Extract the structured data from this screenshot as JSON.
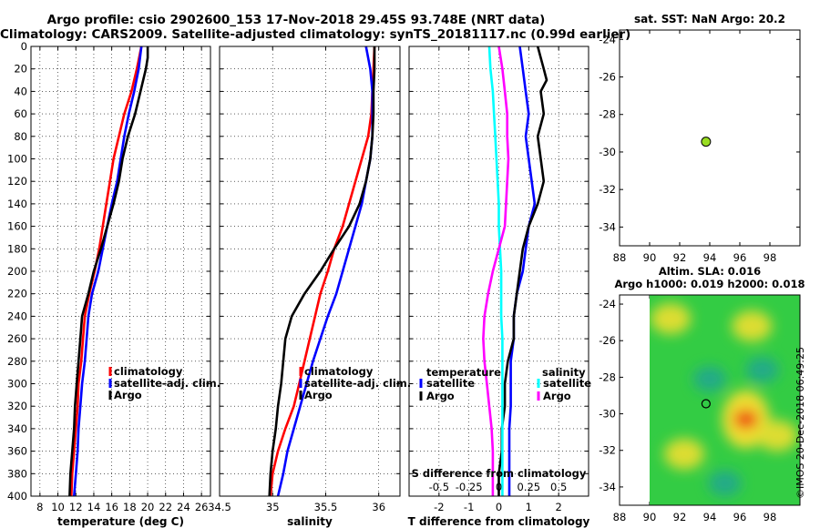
{
  "header": {
    "title_line1": "Argo profile: csio 2902600_153 17-Nov-2018 29.45S 93.748E (NRT data)",
    "title_line2": "Climatology: CARS2009. Satellite-adjusted climatology: synTS_20181117.nc (0.99d earlier)"
  },
  "stamp": "©IMOS 20-Dec-2018 06:49:25",
  "colors": {
    "climatology": "#ff0000",
    "satellite": "#0000ff",
    "argo": "#000000",
    "sat_salinity": "#00ffff",
    "argo_salinity": "#ff00ff"
  },
  "chart_data": [
    {
      "type": "line",
      "id": "temperature",
      "xlabel": "temperature (deg C)",
      "ylabel": "",
      "xlim": [
        7,
        27
      ],
      "ylim": [
        400,
        0
      ],
      "xticks": [
        8,
        10,
        12,
        14,
        16,
        18,
        20,
        22,
        24,
        26
      ],
      "yticks": [
        0,
        20,
        40,
        60,
        80,
        100,
        120,
        140,
        160,
        180,
        200,
        220,
        240,
        260,
        280,
        300,
        320,
        340,
        360,
        380,
        400
      ],
      "legend": {
        "position": "bottom-right",
        "entries": [
          "climatology",
          "satellite-adj. clim.",
          "Argo"
        ]
      },
      "series": [
        {
          "name": "climatology",
          "color": "#ff0000",
          "depth": [
            0,
            20,
            40,
            60,
            80,
            100,
            120,
            140,
            160,
            180,
            200,
            220,
            240,
            260,
            280,
            300,
            320,
            340,
            360,
            380,
            400
          ],
          "values": [
            19.3,
            18.8,
            18.2,
            17.4,
            16.8,
            16.2,
            15.8,
            15.4,
            15.0,
            14.6,
            14.1,
            13.5,
            13.0,
            12.8,
            12.6,
            12.3,
            12.2,
            12.0,
            11.8,
            11.6,
            11.5
          ]
        },
        {
          "name": "satellite-adj. clim.",
          "color": "#0000ff",
          "depth": [
            0,
            20,
            40,
            60,
            80,
            100,
            120,
            140,
            160,
            180,
            200,
            220,
            240,
            260,
            280,
            300,
            320,
            340,
            360,
            380,
            400
          ],
          "values": [
            19.3,
            19.0,
            18.5,
            17.9,
            17.4,
            17.0,
            16.6,
            16.0,
            15.5,
            15.0,
            14.5,
            13.8,
            13.4,
            13.2,
            13.0,
            12.7,
            12.5,
            12.3,
            12.2,
            12.0,
            11.8
          ]
        },
        {
          "name": "Argo",
          "color": "#000000",
          "depth": [
            0,
            10,
            20,
            40,
            60,
            80,
            100,
            120,
            140,
            160,
            180,
            200,
            220,
            240,
            260,
            280,
            300,
            320,
            340,
            360,
            380,
            400
          ],
          "values": [
            20.0,
            20.0,
            19.8,
            19.2,
            18.6,
            17.8,
            17.2,
            16.8,
            16.2,
            15.5,
            14.8,
            14.0,
            13.4,
            12.7,
            12.5,
            12.3,
            12.1,
            11.9,
            11.8,
            11.6,
            11.4,
            11.3
          ]
        }
      ]
    },
    {
      "type": "line",
      "id": "salinity",
      "xlabel": "salinity",
      "ylabel": "",
      "xlim": [
        34.5,
        36.2
      ],
      "ylim": [
        400,
        0
      ],
      "xticks": [
        34.5,
        35,
        35.5,
        36
      ],
      "legend": {
        "position": "bottom-right",
        "entries": [
          "climatology",
          "satellite-adj. clim.",
          "Argo"
        ]
      },
      "series": [
        {
          "name": "climatology",
          "color": "#ff0000",
          "depth": [
            0,
            20,
            40,
            60,
            80,
            100,
            120,
            140,
            160,
            180,
            200,
            220,
            240,
            260,
            280,
            300,
            320,
            340,
            360,
            380,
            400
          ],
          "values": [
            35.96,
            35.95,
            35.94,
            35.93,
            35.9,
            35.84,
            35.78,
            35.72,
            35.66,
            35.58,
            35.52,
            35.45,
            35.4,
            35.35,
            35.3,
            35.25,
            35.2,
            35.12,
            35.05,
            35.0,
            34.98
          ]
        },
        {
          "name": "satellite-adj. clim.",
          "color": "#0000ff",
          "depth": [
            0,
            20,
            40,
            60,
            80,
            100,
            120,
            140,
            160,
            180,
            200,
            220,
            240,
            260,
            280,
            300,
            320,
            340,
            360,
            380,
            400
          ],
          "values": [
            35.88,
            35.92,
            35.94,
            35.94,
            35.94,
            35.92,
            35.88,
            35.84,
            35.78,
            35.72,
            35.66,
            35.6,
            35.52,
            35.45,
            35.38,
            35.32,
            35.26,
            35.2,
            35.14,
            35.1,
            35.05
          ]
        },
        {
          "name": "Argo",
          "color": "#000000",
          "depth": [
            0,
            10,
            20,
            40,
            60,
            80,
            100,
            120,
            140,
            160,
            180,
            200,
            220,
            240,
            260,
            280,
            300,
            320,
            340,
            360,
            380,
            400
          ],
          "values": [
            35.96,
            35.96,
            35.96,
            35.95,
            35.95,
            35.94,
            35.92,
            35.88,
            35.82,
            35.72,
            35.58,
            35.45,
            35.3,
            35.18,
            35.12,
            35.1,
            35.08,
            35.05,
            35.03,
            35.0,
            34.98,
            34.97
          ]
        }
      ]
    },
    {
      "type": "line",
      "id": "difference",
      "xlabel": "T difference from climatology",
      "xlabel_top": "S difference from climatology",
      "xlim": [
        -3,
        3
      ],
      "ylim": [
        400,
        0
      ],
      "xticks": [
        -2,
        -1,
        0,
        1,
        2
      ],
      "xticks_top_labels": [
        "-0.5",
        "-0.25",
        "0",
        "0.25",
        "0.5"
      ],
      "legend": {
        "position": "bottom",
        "temperature_title": "temperature",
        "salinity_title": "salinity",
        "entries": [
          "satellite",
          "Argo"
        ]
      },
      "series": [
        {
          "name": "temperature satellite",
          "color": "#0000ff",
          "depth": [
            0,
            20,
            40,
            60,
            80,
            100,
            120,
            140,
            160,
            180,
            200,
            220,
            240,
            260,
            280,
            300,
            320,
            340,
            360,
            380,
            400
          ],
          "values": [
            0.7,
            0.8,
            0.9,
            1.0,
            0.9,
            1.0,
            1.1,
            1.2,
            1.0,
            0.9,
            0.8,
            0.6,
            0.5,
            0.5,
            0.4,
            0.4,
            0.4,
            0.35,
            0.35,
            0.35,
            0.35
          ]
        },
        {
          "name": "temperature Argo",
          "color": "#000000",
          "depth": [
            0,
            10,
            20,
            30,
            40,
            60,
            80,
            100,
            120,
            140,
            160,
            180,
            200,
            220,
            240,
            260,
            280,
            300,
            320,
            340,
            360,
            380,
            400
          ],
          "values": [
            1.3,
            1.4,
            1.5,
            1.6,
            1.4,
            1.5,
            1.3,
            1.4,
            1.5,
            1.3,
            1.0,
            0.8,
            0.7,
            0.6,
            0.5,
            0.5,
            0.3,
            0.2,
            0.2,
            0.1,
            0.1,
            0.0,
            0.0
          ]
        },
        {
          "name": "salinity satellite",
          "color": "#00ffff",
          "depth": [
            0,
            20,
            40,
            60,
            80,
            100,
            120,
            140,
            160,
            180,
            200,
            220,
            240,
            260,
            280,
            300,
            320,
            340,
            360,
            380,
            400
          ],
          "values": [
            -0.08,
            -0.07,
            -0.05,
            -0.04,
            -0.03,
            -0.02,
            -0.01,
            0.0,
            0.0,
            0.01,
            0.02,
            0.02,
            0.02,
            0.03,
            0.03,
            0.03,
            0.03,
            0.03,
            0.03,
            0.03,
            0.03
          ]
        },
        {
          "name": "salinity Argo",
          "color": "#ff00ff",
          "depth": [
            0,
            20,
            40,
            60,
            80,
            100,
            120,
            140,
            160,
            180,
            200,
            220,
            240,
            260,
            280,
            300,
            320,
            340,
            360,
            380,
            400
          ],
          "values": [
            0.0,
            0.03,
            0.05,
            0.07,
            0.07,
            0.08,
            0.07,
            0.06,
            0.05,
            0.0,
            -0.05,
            -0.09,
            -0.12,
            -0.13,
            -0.12,
            -0.1,
            -0.08,
            -0.06,
            -0.05,
            -0.05,
            -0.05
          ]
        }
      ]
    },
    {
      "type": "scatter",
      "id": "sst-map",
      "title": "sat. SST: NaN Argo: 20.2",
      "xlim": [
        88,
        100
      ],
      "ylim": [
        -35,
        -23.5
      ],
      "xticks": [
        88,
        90,
        92,
        94,
        96,
        98
      ],
      "yticks": [
        -24,
        -26,
        -28,
        -30,
        -32,
        -34
      ],
      "point": {
        "lon": 93.75,
        "lat": -29.45,
        "color": "#99dd22"
      }
    },
    {
      "type": "heatmap",
      "id": "sla-map",
      "title_line1": "Altim. SLA: 0.016",
      "title_line2": "Argo h1000: 0.019 h2000: 0.018",
      "xlim": [
        88,
        100
      ],
      "ylim": [
        -35,
        -23.5
      ],
      "xticks": [
        88,
        90,
        92,
        94,
        96,
        98
      ],
      "yticks": [
        -24,
        -26,
        -28,
        -30,
        -32,
        -34
      ],
      "point": {
        "lon": 93.75,
        "lat": -29.45
      },
      "features": [
        {
          "lon": 96.4,
          "lat": -30.3,
          "level": "high"
        },
        {
          "lon": 91.4,
          "lat": -24.8,
          "level": "mid-high"
        },
        {
          "lon": 96.8,
          "lat": -25.2,
          "level": "mid-high"
        },
        {
          "lon": 98.5,
          "lat": -31.2,
          "level": "mid-high"
        },
        {
          "lon": 92.3,
          "lat": -32.2,
          "level": "mid-high"
        },
        {
          "lon": 94.0,
          "lat": -28.1,
          "level": "low"
        },
        {
          "lon": 97.5,
          "lat": -27.6,
          "level": "low"
        },
        {
          "lon": 95.0,
          "lat": -33.8,
          "level": "low"
        }
      ]
    }
  ]
}
